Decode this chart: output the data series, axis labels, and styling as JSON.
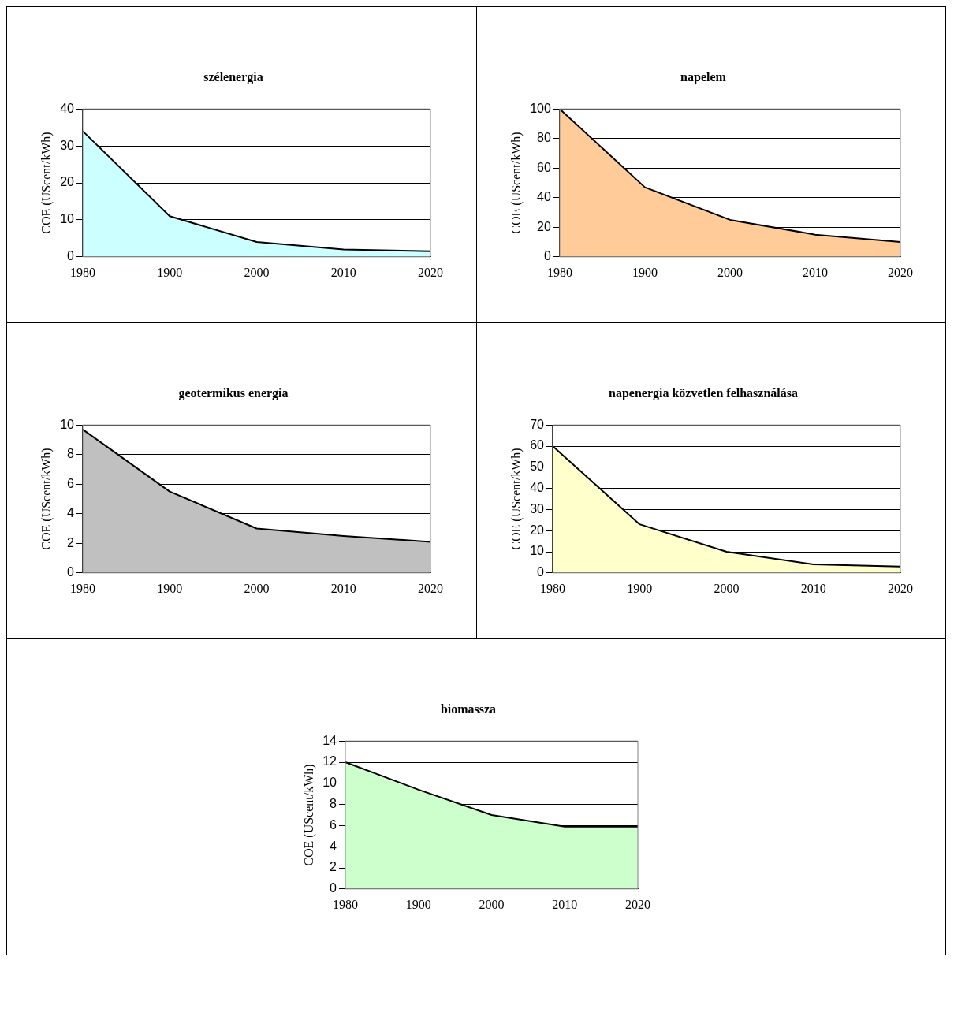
{
  "chart_data": [
    {
      "type": "area",
      "title": "szélenergia",
      "ylabel": "COE (UScent/kWh)",
      "categories": [
        "1980",
        "1900",
        "2000",
        "2010",
        "2020"
      ],
      "values": [
        34,
        11,
        4,
        2,
        1.5
      ],
      "color": "#ccffff",
      "ylim": [
        0,
        40
      ],
      "yticks": [
        0,
        10,
        20,
        30,
        40
      ],
      "grid": "y"
    },
    {
      "type": "area",
      "title": "napelem",
      "ylabel": "COE (UScent/kWh)",
      "categories": [
        "1980",
        "1900",
        "2000",
        "2010",
        "2020"
      ],
      "values": [
        100,
        47,
        25,
        15,
        10
      ],
      "color": "#ffcc99",
      "ylim": [
        0,
        100
      ],
      "yticks": [
        0,
        20,
        40,
        60,
        80,
        100
      ],
      "grid": "y"
    },
    {
      "type": "area",
      "title": "geotermikus energia",
      "ylabel": "COE (UScent/kWh)",
      "categories": [
        "1980",
        "1900",
        "2000",
        "2010",
        "2020"
      ],
      "values": [
        9.7,
        5.5,
        3,
        2.5,
        2.1
      ],
      "color": "#c0c0c0",
      "ylim": [
        0,
        10
      ],
      "yticks": [
        0,
        2,
        4,
        6,
        8,
        10
      ],
      "grid": "y"
    },
    {
      "type": "area",
      "title": "napenergia közvetlen felhasználása",
      "ylabel": "COE (UScent/kWh)",
      "categories": [
        "1980",
        "1900",
        "2000",
        "2010",
        "2020"
      ],
      "values": [
        60,
        23,
        10,
        4,
        3
      ],
      "color": "#ffffcc",
      "ylim": [
        0,
        70
      ],
      "yticks": [
        0,
        10,
        20,
        30,
        40,
        50,
        60,
        70
      ],
      "grid": "y"
    },
    {
      "type": "area",
      "title": "biomassza",
      "ylabel": "COE (UScent/kWh)",
      "categories": [
        "1980",
        "1900",
        "2000",
        "2010",
        "2020"
      ],
      "values": [
        12,
        9.4,
        7,
        5.9,
        5.9
      ],
      "color": "#ccffcc",
      "ylim": [
        0,
        14
      ],
      "yticks": [
        0,
        2,
        4,
        6,
        8,
        10,
        12,
        14
      ],
      "grid": "y"
    }
  ]
}
